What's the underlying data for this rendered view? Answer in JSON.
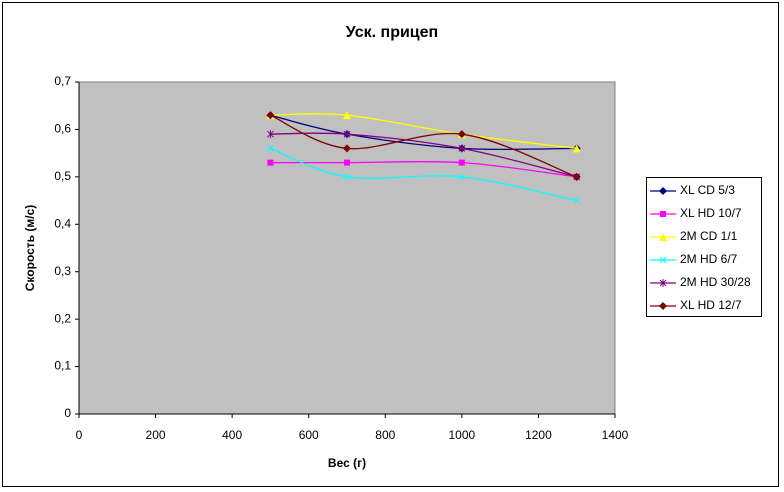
{
  "chart_data": {
    "type": "line",
    "title": "Уск. прицеп",
    "x_label": "Вес (г)",
    "y_label": "Скорость (м/с)",
    "x": [
      500,
      700,
      1000,
      1300
    ],
    "series": [
      {
        "name": "XL CD 5/3",
        "color": "#000080",
        "marker": "diamond",
        "values": [
          0.63,
          0.59,
          0.56,
          0.56
        ]
      },
      {
        "name": "XL HD 10/7",
        "color": "#ff00ff",
        "marker": "square",
        "values": [
          0.53,
          0.53,
          0.53,
          0.5
        ]
      },
      {
        "name": "2M CD 1/1",
        "color": "#ffff00",
        "marker": "triangle",
        "values": [
          0.63,
          0.63,
          0.59,
          0.56
        ]
      },
      {
        "name": "2M HD 6/7",
        "color": "#00ffff",
        "marker": "x",
        "values": [
          0.56,
          0.5,
          0.5,
          0.45
        ]
      },
      {
        "name": "2M HD 30/28",
        "color": "#800080",
        "marker": "star",
        "values": [
          0.59,
          0.59,
          0.56,
          0.5
        ]
      },
      {
        "name": "XL HD 12/7",
        "color": "#800000",
        "marker": "diamond",
        "values": [
          0.63,
          0.56,
          0.59,
          0.5
        ]
      }
    ],
    "xlim": [
      0,
      1400
    ],
    "xticks": [
      0,
      200,
      400,
      600,
      800,
      1000,
      1200,
      1400
    ],
    "ylim": [
      0,
      0.7
    ],
    "yticks": [
      0,
      {
        "value": 0.1,
        "label": "0,1"
      },
      {
        "value": 0.2,
        "label": "0,2"
      },
      {
        "value": 0.3,
        "label": "0,3"
      },
      {
        "value": 0.4,
        "label": "0,4"
      },
      {
        "value": 0.5,
        "label": "0,5"
      },
      {
        "value": 0.6,
        "label": "0,6"
      },
      {
        "value": 0.7,
        "label": "0,7"
      }
    ],
    "smooth": true,
    "plot_background": "#c0c0c0",
    "legend": "right"
  }
}
